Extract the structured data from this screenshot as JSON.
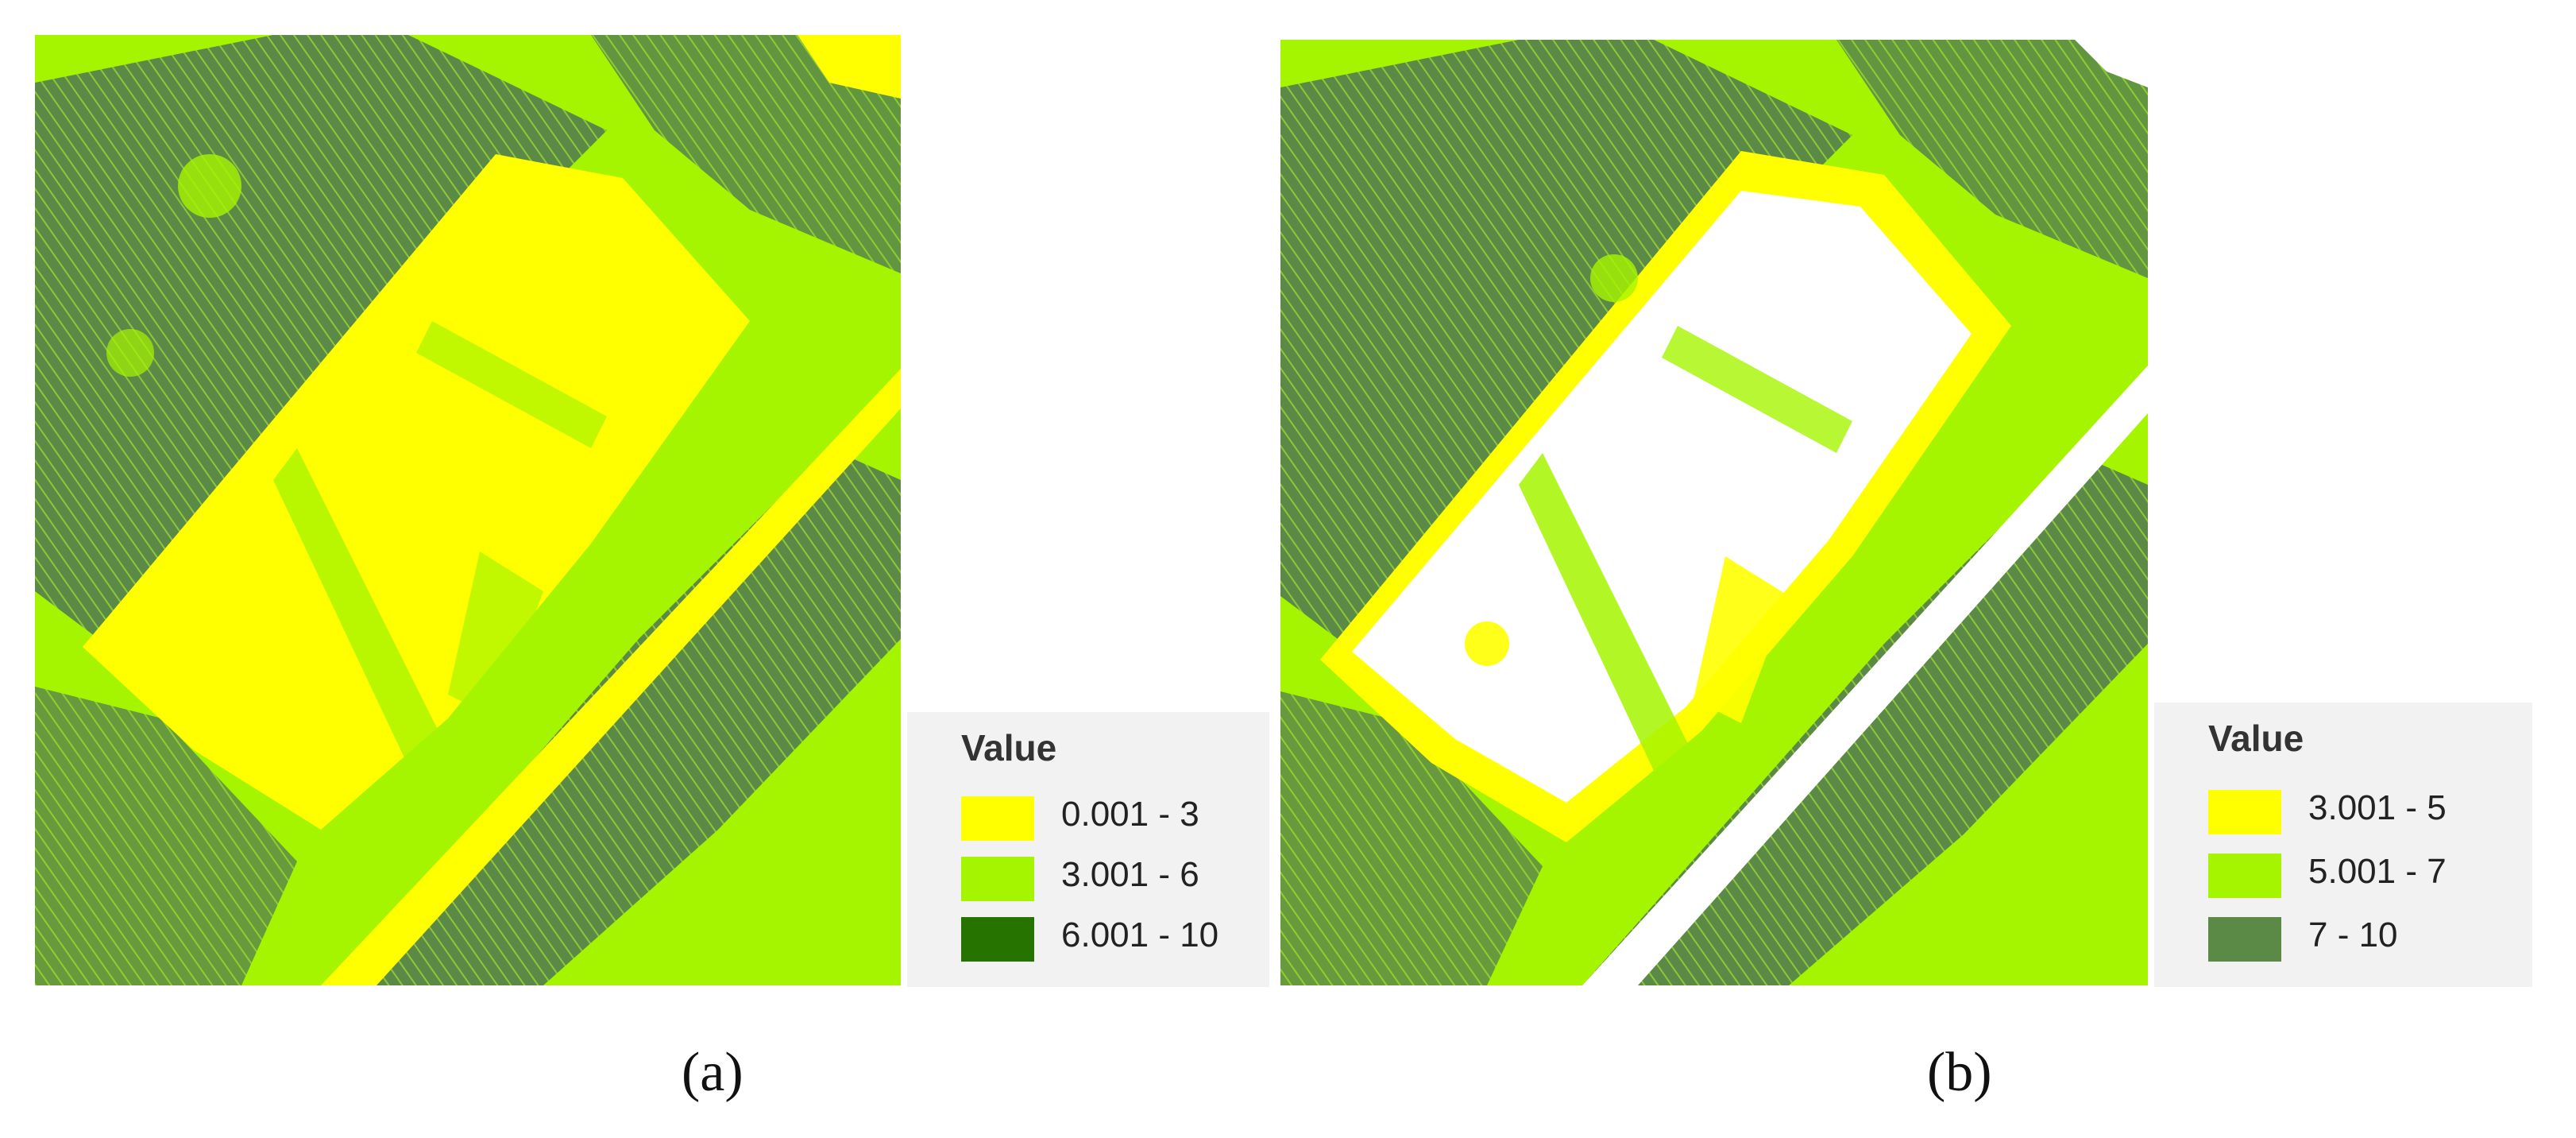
{
  "figure": {
    "panels": [
      {
        "label": "(a)",
        "legend": {
          "title": "Value",
          "classes": [
            {
              "range": "0.001 - 3",
              "color": "#ffff00"
            },
            {
              "range": "3.001 - 6",
              "color": "#a6f500"
            },
            {
              "range": "6.001 - 10",
              "color": "#267300"
            }
          ]
        }
      },
      {
        "label": "(b)",
        "legend": {
          "title": "Value",
          "classes": [
            {
              "range": "3.001 - 5",
              "color": "#ffff00"
            },
            {
              "range": "5.001 - 7",
              "color": "#a6f500"
            },
            {
              "range": "7 - 10",
              "color": "#5b8a46"
            }
          ]
        }
      }
    ]
  }
}
